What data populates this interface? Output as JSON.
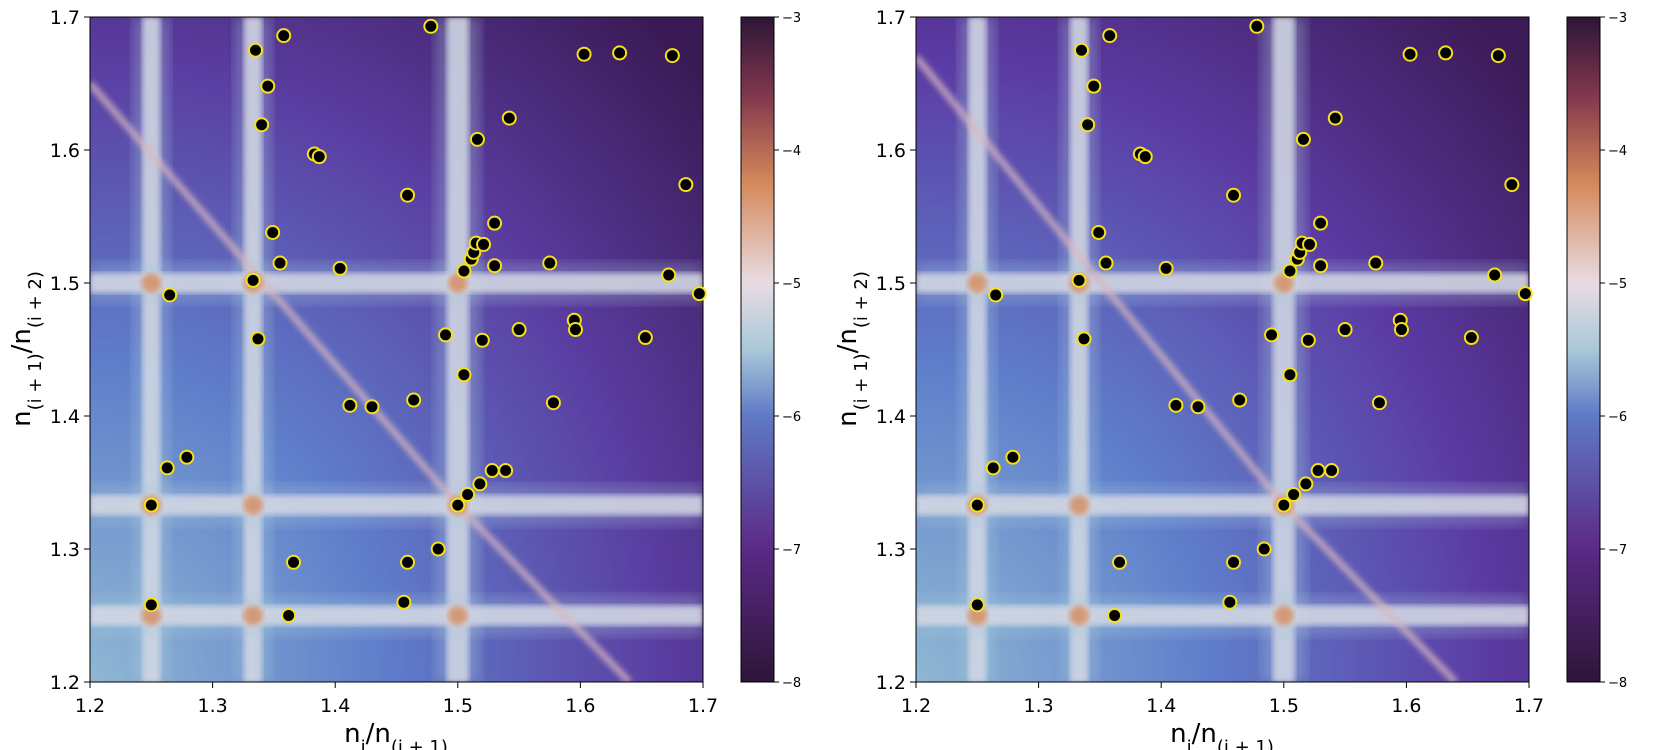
{
  "chart_data": [
    {
      "type": "heatmap",
      "panel": "left",
      "title": "",
      "xlabel_main": "n",
      "xlabel_sub1": "i",
      "xlabel_mid": "/n",
      "xlabel_sub2": "(i + 1)",
      "ylabel_main": "n",
      "ylabel_sub1": "(i + 1)",
      "ylabel_mid": "/n",
      "ylabel_sub2": "(i + 2)",
      "xlim": [
        1.2,
        1.7
      ],
      "ylim": [
        1.2,
        1.7
      ],
      "xticks": [
        1.2,
        1.3,
        1.4,
        1.5,
        1.6,
        1.7
      ],
      "yticks": [
        1.2,
        1.3,
        1.4,
        1.5,
        1.6,
        1.7
      ],
      "xtick_labels": [
        "1.2",
        "1.3",
        "1.4",
        "1.5",
        "1.6",
        "1.7"
      ],
      "ytick_labels": [
        "1.2",
        "1.3",
        "1.4",
        "1.5",
        "1.6",
        "1.7"
      ],
      "colorbar": {
        "range": [
          -8,
          -3
        ],
        "ticks": [
          -8,
          -7,
          -6,
          -5,
          -4,
          -3
        ],
        "tick_labels": [
          "−8",
          "−7",
          "−6",
          "−5",
          "−4",
          "−3"
        ]
      },
      "vertical_bands": [
        1.25,
        1.333,
        1.5
      ],
      "horizontal_bands": [
        1.25,
        1.333,
        1.5
      ],
      "diagonal_bands": [
        {
          "from": [
            1.2,
            1.65
          ],
          "to": [
            1.5,
            1.333
          ]
        },
        {
          "from": [
            1.5,
            1.333
          ],
          "to": [
            1.64,
            1.2
          ]
        }
      ],
      "marker_style": {
        "fill": "#000000",
        "edge": "#f5e11a"
      },
      "points": [
        [
          1.25,
          1.258
        ],
        [
          1.25,
          1.333
        ],
        [
          1.263,
          1.361
        ],
        [
          1.265,
          1.491
        ],
        [
          1.279,
          1.369
        ],
        [
          1.333,
          1.502
        ],
        [
          1.335,
          1.675
        ],
        [
          1.337,
          1.458
        ],
        [
          1.34,
          1.619
        ],
        [
          1.345,
          1.648
        ],
        [
          1.349,
          1.538
        ],
        [
          1.355,
          1.515
        ],
        [
          1.358,
          1.686
        ],
        [
          1.362,
          1.25
        ],
        [
          1.366,
          1.29
        ],
        [
          1.383,
          1.597
        ],
        [
          1.387,
          1.595
        ],
        [
          1.404,
          1.511
        ],
        [
          1.412,
          1.408
        ],
        [
          1.43,
          1.407
        ],
        [
          1.456,
          1.26
        ],
        [
          1.459,
          1.29
        ],
        [
          1.459,
          1.566
        ],
        [
          1.464,
          1.412
        ],
        [
          1.478,
          1.693
        ],
        [
          1.484,
          1.3
        ],
        [
          1.49,
          1.461
        ],
        [
          1.5,
          1.333
        ],
        [
          1.505,
          1.431
        ],
        [
          1.505,
          1.509
        ],
        [
          1.508,
          1.341
        ],
        [
          1.511,
          1.518
        ],
        [
          1.513,
          1.523
        ],
        [
          1.515,
          1.53
        ],
        [
          1.516,
          1.608
        ],
        [
          1.518,
          1.349
        ],
        [
          1.52,
          1.457
        ],
        [
          1.521,
          1.529
        ],
        [
          1.528,
          1.359
        ],
        [
          1.53,
          1.545
        ],
        [
          1.53,
          1.513
        ],
        [
          1.539,
          1.359
        ],
        [
          1.542,
          1.624
        ],
        [
          1.55,
          1.465
        ],
        [
          1.575,
          1.515
        ],
        [
          1.578,
          1.41
        ],
        [
          1.595,
          1.472
        ],
        [
          1.596,
          1.465
        ],
        [
          1.603,
          1.672
        ],
        [
          1.632,
          1.673
        ],
        [
          1.653,
          1.459
        ],
        [
          1.672,
          1.506
        ],
        [
          1.675,
          1.671
        ],
        [
          1.686,
          1.574
        ],
        [
          1.697,
          1.492
        ]
      ]
    },
    {
      "type": "heatmap",
      "panel": "right",
      "title": "",
      "xlabel_main": "n",
      "xlabel_sub1": "i",
      "xlabel_mid": "/n",
      "xlabel_sub2": "(i + 1)",
      "ylabel_main": "n",
      "ylabel_sub1": "(i + 1)",
      "ylabel_mid": "/n",
      "ylabel_sub2": "(i + 2)",
      "xlim": [
        1.2,
        1.7
      ],
      "ylim": [
        1.2,
        1.7
      ],
      "xticks": [
        1.2,
        1.3,
        1.4,
        1.5,
        1.6,
        1.7
      ],
      "yticks": [
        1.2,
        1.3,
        1.4,
        1.5,
        1.6,
        1.7
      ],
      "xtick_labels": [
        "1.2",
        "1.3",
        "1.4",
        "1.5",
        "1.6",
        "1.7"
      ],
      "ytick_labels": [
        "1.2",
        "1.3",
        "1.4",
        "1.5",
        "1.6",
        "1.7"
      ],
      "colorbar": {
        "range": [
          -8,
          -3
        ],
        "ticks": [
          -8,
          -7,
          -6,
          -5,
          -4,
          -3
        ],
        "tick_labels": [
          "−8",
          "−7",
          "−6",
          "−5",
          "−4",
          "−3"
        ]
      },
      "vertical_bands": [
        1.25,
        1.333,
        1.5
      ],
      "horizontal_bands": [
        1.25,
        1.333,
        1.5
      ],
      "diagonal_bands": [
        {
          "from": [
            1.2,
            1.67
          ],
          "to": [
            1.5,
            1.333
          ]
        },
        {
          "from": [
            1.5,
            1.333
          ],
          "to": [
            1.64,
            1.2
          ]
        }
      ],
      "marker_style": {
        "fill": "#000000",
        "edge": "#f5e11a"
      },
      "points": [
        [
          1.25,
          1.258
        ],
        [
          1.25,
          1.333
        ],
        [
          1.263,
          1.361
        ],
        [
          1.265,
          1.491
        ],
        [
          1.279,
          1.369
        ],
        [
          1.333,
          1.502
        ],
        [
          1.335,
          1.675
        ],
        [
          1.337,
          1.458
        ],
        [
          1.34,
          1.619
        ],
        [
          1.345,
          1.648
        ],
        [
          1.349,
          1.538
        ],
        [
          1.355,
          1.515
        ],
        [
          1.358,
          1.686
        ],
        [
          1.362,
          1.25
        ],
        [
          1.366,
          1.29
        ],
        [
          1.383,
          1.597
        ],
        [
          1.387,
          1.595
        ],
        [
          1.404,
          1.511
        ],
        [
          1.412,
          1.408
        ],
        [
          1.43,
          1.407
        ],
        [
          1.456,
          1.26
        ],
        [
          1.459,
          1.29
        ],
        [
          1.459,
          1.566
        ],
        [
          1.464,
          1.412
        ],
        [
          1.478,
          1.693
        ],
        [
          1.484,
          1.3
        ],
        [
          1.49,
          1.461
        ],
        [
          1.5,
          1.333
        ],
        [
          1.505,
          1.431
        ],
        [
          1.505,
          1.509
        ],
        [
          1.508,
          1.341
        ],
        [
          1.511,
          1.518
        ],
        [
          1.513,
          1.523
        ],
        [
          1.515,
          1.53
        ],
        [
          1.516,
          1.608
        ],
        [
          1.518,
          1.349
        ],
        [
          1.52,
          1.457
        ],
        [
          1.521,
          1.529
        ],
        [
          1.528,
          1.359
        ],
        [
          1.53,
          1.545
        ],
        [
          1.53,
          1.513
        ],
        [
          1.539,
          1.359
        ],
        [
          1.542,
          1.624
        ],
        [
          1.55,
          1.465
        ],
        [
          1.575,
          1.515
        ],
        [
          1.578,
          1.41
        ],
        [
          1.595,
          1.472
        ],
        [
          1.596,
          1.465
        ],
        [
          1.603,
          1.672
        ],
        [
          1.632,
          1.673
        ],
        [
          1.653,
          1.459
        ],
        [
          1.672,
          1.506
        ],
        [
          1.675,
          1.671
        ],
        [
          1.686,
          1.574
        ],
        [
          1.697,
          1.492
        ]
      ]
    }
  ],
  "colors": {
    "low": "#2d1538",
    "mid_low": "#6a3f9e",
    "mid": "#5d72c4",
    "light": "#93bcd4",
    "pale": "#ece4ea",
    "orange": "#d48a5c",
    "marker_edge": "#f5e11a"
  }
}
